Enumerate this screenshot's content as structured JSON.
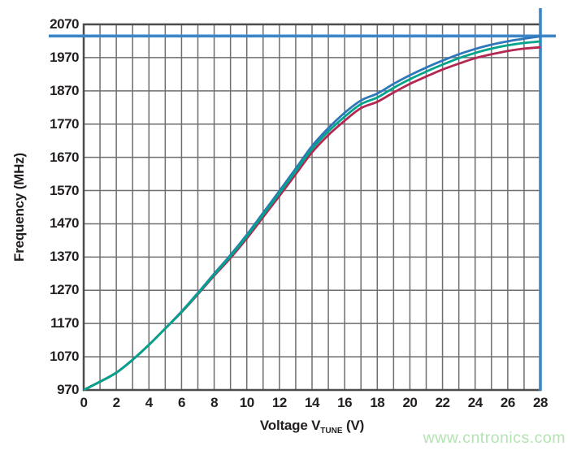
{
  "watermark": {
    "text": "www.cntronics.com",
    "color": "#b3e3b3"
  },
  "chart_data": {
    "type": "line",
    "title": "",
    "xlabel": "Voltage V_TUNE (V)",
    "xlabel_parts": {
      "pre": "Voltage V",
      "sub": "TUNE",
      "post": " (V)"
    },
    "ylabel": "Frequency (MHz)",
    "xlim": [
      0,
      28
    ],
    "ylim": [
      970,
      2070
    ],
    "grid": "on",
    "grid_x_step": 1,
    "grid_y_step": 100,
    "legend": "none",
    "x_tick_labels": [
      "0",
      "2",
      "4",
      "6",
      "8",
      "10",
      "12",
      "14",
      "16",
      "18",
      "20",
      "22",
      "24",
      "26",
      "28"
    ],
    "x_tick_values": [
      0,
      2,
      4,
      6,
      8,
      10,
      12,
      14,
      16,
      18,
      20,
      22,
      24,
      26,
      28
    ],
    "y_tick_labels": [
      "970",
      "1070",
      "1170",
      "1270",
      "1370",
      "1470",
      "1570",
      "1670",
      "1770",
      "1870",
      "1970",
      "2070"
    ],
    "y_tick_values": [
      970,
      1070,
      1170,
      1270,
      1370,
      1470,
      1570,
      1670,
      1770,
      1870,
      1970,
      2070
    ],
    "x": [
      0,
      1,
      2,
      3,
      4,
      5,
      6,
      7,
      8,
      9,
      10,
      11,
      12,
      13,
      14,
      15,
      16,
      17,
      18,
      19,
      20,
      21,
      22,
      23,
      24,
      25,
      26,
      27,
      28
    ],
    "series": [
      {
        "name": "curve-top-blue",
        "color": "#2f77bb",
        "values": [
          970,
          995,
          1022,
          1061,
          1106,
          1155,
          1206,
          1262,
          1320,
          1376,
          1437,
          1503,
          1569,
          1636,
          1704,
          1758,
          1804,
          1841,
          1862,
          1891,
          1917,
          1940,
          1961,
          1980,
          1996,
          2009,
          2019,
          2027,
          2034
        ]
      },
      {
        "name": "curve-middle-green",
        "color": "#00a38b",
        "values": [
          970,
          995,
          1022,
          1061,
          1106,
          1155,
          1205,
          1260,
          1317,
          1372,
          1432,
          1497,
          1562,
          1628,
          1695,
          1748,
          1792,
          1830,
          1850,
          1879,
          1905,
          1928,
          1949,
          1968,
          1984,
          1997,
          2007,
          2014,
          2019
        ]
      },
      {
        "name": "curve-bottom-red",
        "color": "#b22852",
        "values": [
          970,
          995,
          1022,
          1061,
          1106,
          1155,
          1204,
          1258,
          1314,
          1367,
          1426,
          1490,
          1554,
          1619,
          1685,
          1737,
          1780,
          1818,
          1837,
          1865,
          1891,
          1913,
          1934,
          1952,
          1968,
          1980,
          1990,
          1997,
          2001
        ]
      }
    ],
    "marker_lines": {
      "horizontal_value_mhz": 2035,
      "vertical_value_v": 28,
      "color": "#3c86c8"
    },
    "grid_color": "#6d6e71",
    "border_color": "#4a4b4d",
    "text_color": "#231f20"
  }
}
